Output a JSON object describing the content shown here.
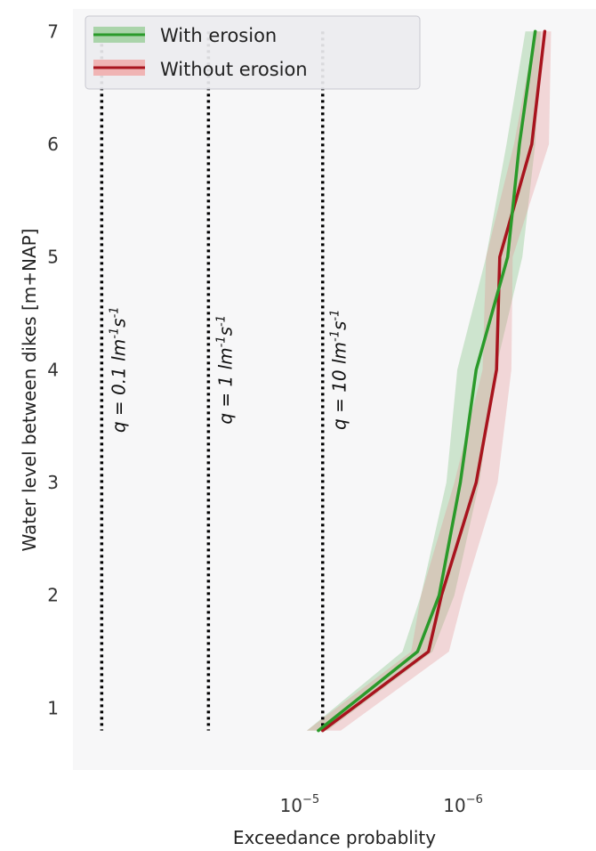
{
  "chart_data": {
    "type": "line",
    "xlabel": "Exceedance probablity",
    "ylabel": "Water level between dikes [m+NAP]",
    "x_scale": "log",
    "x_reversed": true,
    "xlim": [
      0.00027,
      1.7e-07
    ],
    "ylim": [
      0.45,
      7.2
    ],
    "x_ticks": [
      {
        "value": 1e-05,
        "mantissa": "10",
        "exponent": "−5"
      },
      {
        "value": 1e-06,
        "mantissa": "10",
        "exponent": "−6"
      }
    ],
    "y_ticks": [
      {
        "value": 1,
        "label": "1"
      },
      {
        "value": 2,
        "label": "2"
      },
      {
        "value": 3,
        "label": "3"
      },
      {
        "value": 4,
        "label": "4"
      },
      {
        "value": 5,
        "label": "5"
      },
      {
        "value": 6,
        "label": "6"
      },
      {
        "value": 7,
        "label": "7"
      }
    ],
    "grid": false,
    "background": "#f7f7f8",
    "legend": {
      "placement": "top-left",
      "entries": [
        {
          "label": "With erosion",
          "color": "#2a9a2a",
          "band_color": "#aad4aa"
        },
        {
          "label": "Without erosion",
          "color": "#a8141e",
          "band_color": "#f0b4b4"
        }
      ]
    },
    "series": [
      {
        "name": "With erosion",
        "color": "#2a9a2a",
        "band_color": "#2a9a2a",
        "band_opacity": 0.2,
        "points": [
          {
            "y": 0.8,
            "x": 8.5e-06,
            "lo": 7.5e-06,
            "hi": 1e-05
          },
          {
            "y": 1.5,
            "x": 2.1e-06,
            "lo": 1.7e-06,
            "hi": 2.6e-06
          },
          {
            "y": 2.0,
            "x": 1.55e-06,
            "lo": 1.25e-06,
            "hi": 2e-06
          },
          {
            "y": 3.0,
            "x": 1.15e-06,
            "lo": 8.8e-07,
            "hi": 1.4e-06
          },
          {
            "y": 4.0,
            "x": 9.2e-07,
            "lo": 7e-07,
            "hi": 1.2e-06
          },
          {
            "y": 5.0,
            "x": 5.9e-07,
            "lo": 4.8e-07,
            "hi": 8e-07
          },
          {
            "y": 6.0,
            "x": 5e-07,
            "lo": 4e-07,
            "hi": 6e-07
          },
          {
            "y": 7.0,
            "x": 4e-07,
            "lo": 3.7e-07,
            "hi": 4.6e-07
          }
        ]
      },
      {
        "name": "Without erosion",
        "color": "#a8141e",
        "band_color": "#e58a8a",
        "band_opacity": 0.3,
        "points": [
          {
            "y": 0.8,
            "x": 8e-06,
            "lo": 6.2e-06,
            "hi": 1e-05
          },
          {
            "y": 1.5,
            "x": 1.8e-06,
            "lo": 1.35e-06,
            "hi": 2.3e-06
          },
          {
            "y": 2.0,
            "x": 1.5e-06,
            "lo": 1.1e-06,
            "hi": 2e-06
          },
          {
            "y": 3.0,
            "x": 9.2e-07,
            "lo": 6.8e-07,
            "hi": 1.25e-06
          },
          {
            "y": 4.0,
            "x": 6.9e-07,
            "lo": 5.6e-07,
            "hi": 8.4e-07
          },
          {
            "y": 5.0,
            "x": 6.6e-07,
            "lo": 5.5e-07,
            "hi": 8e-07
          },
          {
            "y": 6.0,
            "x": 4.2e-07,
            "lo": 3.3e-07,
            "hi": 5.4e-07
          },
          {
            "y": 7.0,
            "x": 3.5e-07,
            "lo": 3.2e-07,
            "hi": 4e-07
          }
        ]
      }
    ],
    "reference_lines": [
      {
        "x": 0.00018,
        "y_from": 0.8,
        "y_to": 7.0,
        "label_q": "q",
        "label_rest": " = 0.1 lm",
        "unit_sup1": "-1",
        "unit_mid": "s",
        "unit_sup2": "-1",
        "label_y": 4.0
      },
      {
        "x": 4e-05,
        "y_from": 0.8,
        "y_to": 7.0,
        "label_q": "q",
        "label_rest": " = 1 lm",
        "unit_sup1": "-1",
        "unit_mid": "s",
        "unit_sup2": "-1",
        "label_y": 4.0
      },
      {
        "x": 8e-06,
        "y_from": 0.8,
        "y_to": 7.0,
        "label_q": "q",
        "label_rest": " = 10 lm",
        "unit_sup1": "-1",
        "unit_mid": "s",
        "unit_sup2": "-1",
        "label_y": 4.0
      }
    ]
  }
}
